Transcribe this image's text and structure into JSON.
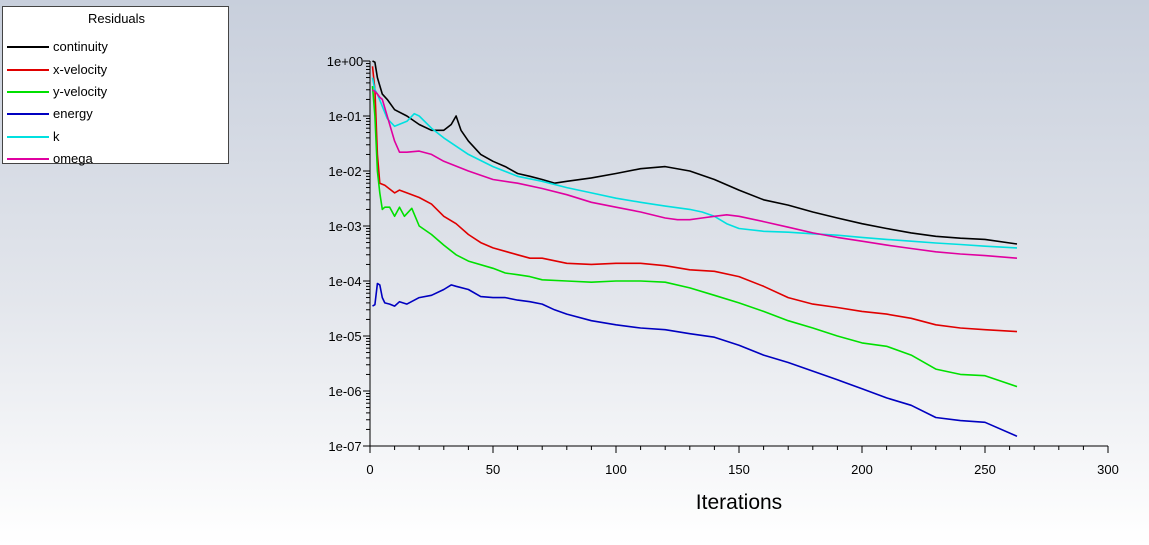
{
  "chart_data": {
    "type": "line",
    "title": "",
    "legend_title": "Residuals",
    "legend_position": "top-left",
    "xlabel": "Iterations",
    "ylabel": "",
    "xlim": [
      0,
      300
    ],
    "ylim": [
      1e-07,
      1
    ],
    "yscale": "log",
    "grid": false,
    "x_ticks": [
      0,
      50,
      100,
      150,
      200,
      250,
      300
    ],
    "x_tick_labels": [
      "0",
      "50",
      "100",
      "150",
      "200",
      "250",
      "300"
    ],
    "y_ticks": [
      1,
      0.1,
      0.01,
      0.001,
      0.0001,
      1e-05,
      1e-06,
      1e-07
    ],
    "y_tick_labels": [
      "1e+00",
      "1e-01",
      "1e-02",
      "1e-03",
      "1e-04",
      "1e-05",
      "1e-06",
      "1e-07"
    ],
    "series": [
      {
        "name": "continuity",
        "color": "#000000",
        "x": [
          1,
          2,
          3,
          5,
          7,
          10,
          15,
          20,
          25,
          30,
          33,
          35,
          37,
          40,
          45,
          50,
          55,
          60,
          65,
          70,
          75,
          80,
          90,
          100,
          110,
          120,
          130,
          140,
          150,
          160,
          170,
          180,
          190,
          200,
          210,
          220,
          230,
          240,
          250,
          263
        ],
        "y": [
          1.0,
          0.95,
          0.5,
          0.25,
          0.2,
          0.13,
          0.1,
          0.07,
          0.055,
          0.055,
          0.07,
          0.1,
          0.055,
          0.035,
          0.02,
          0.015,
          0.012,
          0.009,
          0.008,
          0.007,
          0.006,
          0.0065,
          0.0075,
          0.009,
          0.011,
          0.012,
          0.01,
          0.007,
          0.0045,
          0.003,
          0.0024,
          0.0018,
          0.0014,
          0.0011,
          0.0009,
          0.00075,
          0.00065,
          0.0006,
          0.00057,
          0.00047
        ]
      },
      {
        "name": "x-velocity",
        "color": "#e00000",
        "x": [
          1,
          2,
          3,
          4,
          6,
          10,
          12,
          15,
          20,
          25,
          30,
          35,
          40,
          45,
          50,
          60,
          65,
          70,
          80,
          90,
          100,
          110,
          120,
          130,
          140,
          150,
          160,
          170,
          180,
          190,
          200,
          210,
          220,
          230,
          240,
          250,
          263
        ],
        "y": [
          0.8,
          0.3,
          0.02,
          0.006,
          0.0055,
          0.004,
          0.0045,
          0.004,
          0.0033,
          0.0025,
          0.0015,
          0.0011,
          0.0007,
          0.0005,
          0.0004,
          0.0003,
          0.00026,
          0.00026,
          0.00021,
          0.0002,
          0.00021,
          0.00021,
          0.00019,
          0.00016,
          0.00015,
          0.00012,
          8e-05,
          5e-05,
          3.8e-05,
          3.3e-05,
          2.8e-05,
          2.5e-05,
          2.1e-05,
          1.6e-05,
          1.4e-05,
          1.3e-05,
          1.2e-05
        ]
      },
      {
        "name": "y-velocity",
        "color": "#00e000",
        "x": [
          1,
          2,
          3,
          4,
          5,
          6,
          8,
          10,
          12,
          14,
          17,
          20,
          25,
          30,
          35,
          40,
          50,
          55,
          60,
          65,
          70,
          80,
          90,
          100,
          110,
          120,
          130,
          140,
          150,
          160,
          170,
          180,
          190,
          200,
          210,
          220,
          230,
          240,
          250,
          263
        ],
        "y": [
          0.35,
          0.1,
          0.01,
          0.004,
          0.002,
          0.0022,
          0.0022,
          0.0015,
          0.0022,
          0.0015,
          0.0021,
          0.001,
          0.0007,
          0.00045,
          0.0003,
          0.00023,
          0.00017,
          0.00014,
          0.00013,
          0.00012,
          0.000105,
          0.0001,
          9.5e-05,
          0.0001,
          0.0001,
          9.5e-05,
          7.5e-05,
          5.5e-05,
          4e-05,
          2.8e-05,
          1.9e-05,
          1.4e-05,
          1e-05,
          7.5e-06,
          6.5e-06,
          4.5e-06,
          2.5e-06,
          2e-06,
          1.9e-06,
          1.2e-06
        ]
      },
      {
        "name": "energy",
        "color": "#0000c0",
        "x": [
          1,
          2,
          3,
          4,
          5,
          6,
          8,
          10,
          12,
          15,
          20,
          25,
          30,
          33,
          35,
          40,
          45,
          50,
          55,
          60,
          65,
          70,
          75,
          80,
          90,
          100,
          110,
          120,
          130,
          140,
          150,
          160,
          170,
          180,
          190,
          200,
          210,
          220,
          230,
          240,
          250,
          263
        ],
        "y": [
          3.5e-05,
          3.7e-05,
          9e-05,
          8.5e-05,
          5e-05,
          4e-05,
          3.8e-05,
          3.5e-05,
          4.2e-05,
          3.8e-05,
          5e-05,
          5.5e-05,
          7e-05,
          8.5e-05,
          8e-05,
          7e-05,
          5.2e-05,
          5e-05,
          5e-05,
          4.5e-05,
          4.2e-05,
          3.8e-05,
          3e-05,
          2.5e-05,
          1.9e-05,
          1.6e-05,
          1.4e-05,
          1.3e-05,
          1.1e-05,
          9.5e-06,
          6.8e-06,
          4.5e-06,
          3.3e-06,
          2.3e-06,
          1.6e-06,
          1.1e-06,
          7.5e-07,
          5.5e-07,
          3.3e-07,
          2.9e-07,
          2.7e-07,
          1.5e-07
        ]
      },
      {
        "name": "k",
        "color": "#00e0e0",
        "x": [
          1,
          2,
          3,
          5,
          7,
          10,
          15,
          18,
          20,
          25,
          30,
          40,
          50,
          60,
          70,
          80,
          90,
          100,
          110,
          120,
          130,
          135,
          140,
          145,
          150,
          160,
          170,
          180,
          190,
          200,
          210,
          220,
          230,
          240,
          250,
          263
        ],
        "y": [
          0.5,
          0.3,
          0.25,
          0.15,
          0.09,
          0.065,
          0.08,
          0.11,
          0.1,
          0.06,
          0.04,
          0.02,
          0.012,
          0.008,
          0.0065,
          0.005,
          0.004,
          0.0032,
          0.0027,
          0.0023,
          0.002,
          0.0018,
          0.0015,
          0.0011,
          0.0009,
          0.0008,
          0.00077,
          0.00072,
          0.00068,
          0.00062,
          0.00057,
          0.00053,
          0.00049,
          0.00046,
          0.00043,
          0.0004
        ]
      },
      {
        "name": "omega",
        "color": "#e000a0",
        "x": [
          1,
          2,
          3,
          4,
          5,
          7,
          10,
          12,
          15,
          20,
          25,
          30,
          40,
          50,
          60,
          70,
          80,
          90,
          100,
          110,
          120,
          125,
          130,
          135,
          140,
          145,
          150,
          160,
          170,
          180,
          190,
          200,
          210,
          220,
          230,
          240,
          250,
          263
        ],
        "y": [
          0.3,
          0.28,
          0.25,
          0.22,
          0.2,
          0.1,
          0.035,
          0.022,
          0.022,
          0.023,
          0.02,
          0.015,
          0.01,
          0.007,
          0.006,
          0.0048,
          0.0037,
          0.0027,
          0.0022,
          0.0018,
          0.0014,
          0.0013,
          0.0013,
          0.0014,
          0.0015,
          0.0016,
          0.0015,
          0.0012,
          0.00095,
          0.00075,
          0.00062,
          0.00053,
          0.00045,
          0.00039,
          0.00034,
          0.00031,
          0.00029,
          0.00026
        ]
      }
    ]
  }
}
